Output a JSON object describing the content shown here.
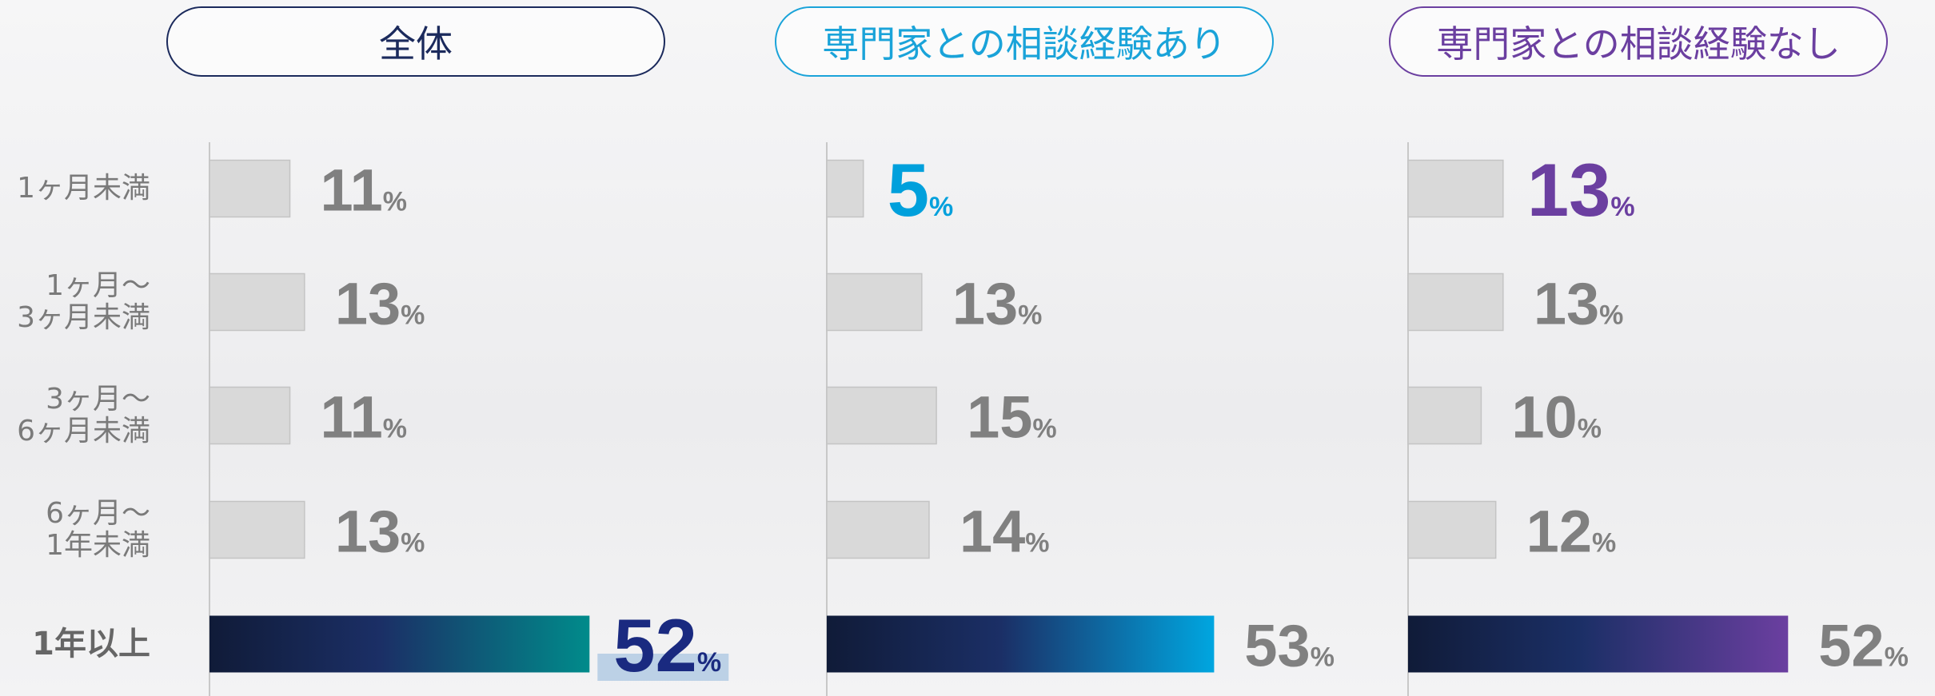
{
  "chart_data": [
    {
      "type": "bar",
      "title": "全体",
      "title_color": "#1b2a5c",
      "unit": "%",
      "categories": [
        "1ヶ月未満",
        "1ヶ月～\n3ヶ月未満",
        "3ヶ月～\n6ヶ月未満",
        "6ヶ月～\n1年未満",
        "1年以上"
      ],
      "values": [
        11,
        13,
        11,
        13,
        52
      ],
      "bar_colors": [
        "#d9d9d9",
        "#d9d9d9",
        "#d9d9d9",
        "#d9d9d9",
        "#008b8b"
      ],
      "label_colors": [
        "#808080",
        "#808080",
        "#808080",
        "#808080",
        "#1a2a80"
      ]
    },
    {
      "type": "bar",
      "title": "専門家との相談経験あり",
      "title_color": "#1aa3d9",
      "unit": "%",
      "values": [
        5,
        13,
        15,
        14,
        53
      ],
      "bar_colors": [
        "#d9d9d9",
        "#d9d9d9",
        "#d9d9d9",
        "#d9d9d9",
        "#00a6e0"
      ],
      "label_colors": [
        "#00a0dc",
        "#808080",
        "#808080",
        "#808080",
        "#808080"
      ]
    },
    {
      "type": "bar",
      "title": "専門家との相談経験なし",
      "title_color": "#6b3fa0",
      "unit": "%",
      "values": [
        13,
        13,
        10,
        12,
        52
      ],
      "bar_colors": [
        "#d9d9d9",
        "#d9d9d9",
        "#d9d9d9",
        "#d9d9d9",
        "#6b3fa0"
      ],
      "label_colors": [
        "#6b3fa0",
        "#808080",
        "#808080",
        "#808080",
        "#808080"
      ]
    }
  ]
}
